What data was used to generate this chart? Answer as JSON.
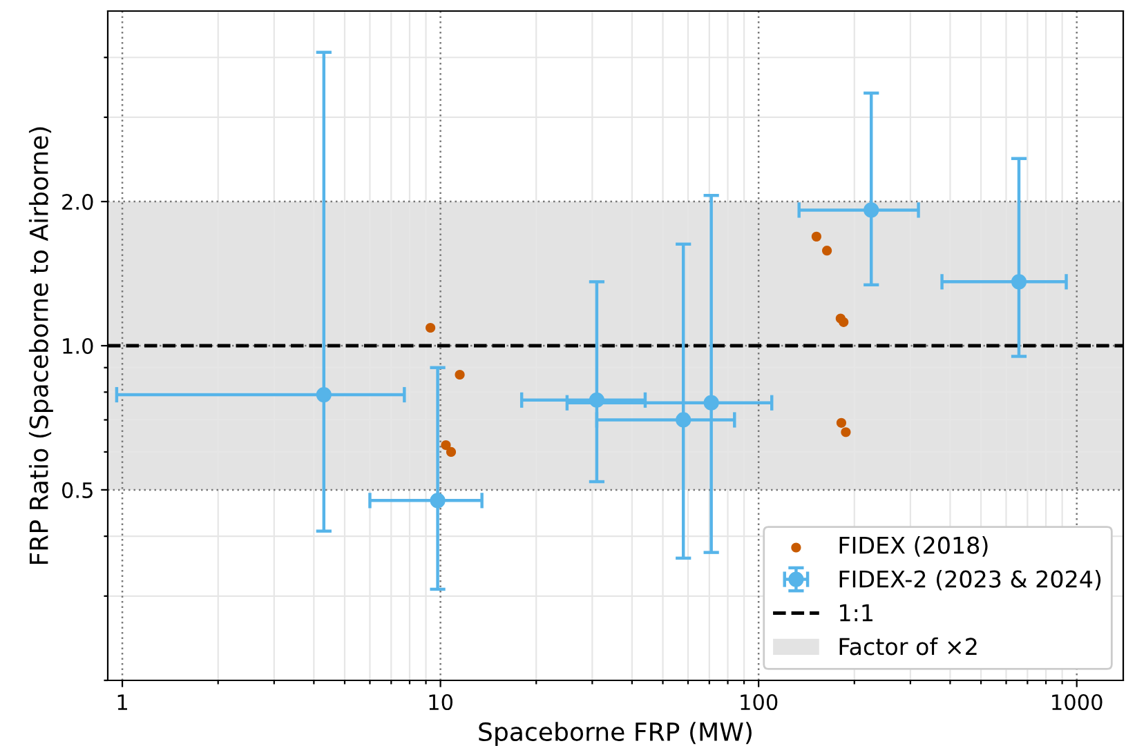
{
  "chart_data": {
    "type": "scatter",
    "xlabel": "Spaceborne FRP (MW)",
    "ylabel": "FRP Ratio (Spaceborne to Airborne)",
    "log": "xy",
    "grid": true,
    "legend": "bottom right",
    "marker": "circle",
    "xlim": [
      0.9,
      1400
    ],
    "ylim": [
      0.2,
      5
    ],
    "xticks": [
      {
        "value": 1,
        "label": "1"
      },
      {
        "value": 10,
        "label": "10"
      },
      {
        "value": 100,
        "label": "100"
      },
      {
        "value": 1000,
        "label": "1000"
      },
      {
        "value": 2,
        "label": null
      },
      {
        "value": 3,
        "label": null
      },
      {
        "value": 4,
        "label": null
      },
      {
        "value": 5,
        "label": null
      },
      {
        "value": 6,
        "label": null
      },
      {
        "value": 7,
        "label": null
      },
      {
        "value": 8,
        "label": null
      },
      {
        "value": 9,
        "label": null
      },
      {
        "value": 20,
        "label": null
      },
      {
        "value": 30,
        "label": null
      },
      {
        "value": 40,
        "label": null
      },
      {
        "value": 50,
        "label": null
      },
      {
        "value": 60,
        "label": null
      },
      {
        "value": 70,
        "label": null
      },
      {
        "value": 80,
        "label": null
      },
      {
        "value": 90,
        "label": null
      },
      {
        "value": 200,
        "label": null
      },
      {
        "value": 300,
        "label": null
      },
      {
        "value": 400,
        "label": null
      },
      {
        "value": 500,
        "label": null
      },
      {
        "value": 600,
        "label": null
      },
      {
        "value": 700,
        "label": null
      },
      {
        "value": 800,
        "label": null
      },
      {
        "value": 900,
        "label": null
      }
    ],
    "yticks": [
      {
        "value": 0.5,
        "label": "0.5"
      },
      {
        "value": 1,
        "label": "1.0"
      },
      {
        "value": 2,
        "label": "2.0"
      },
      {
        "value": 0.2,
        "label": null
      },
      {
        "value": 0.3,
        "label": null
      },
      {
        "value": 0.4,
        "label": null
      },
      {
        "value": 0.6,
        "label": null
      },
      {
        "value": 0.7,
        "label": null
      },
      {
        "value": 0.8,
        "label": null
      },
      {
        "value": 0.9,
        "label": null
      },
      {
        "value": 3,
        "label": null
      },
      {
        "value": 4,
        "label": null
      }
    ],
    "ref_lines": [
      {
        "axis": "y",
        "value": 1,
        "label": "1:1",
        "color": "#000000",
        "line_style": "dashed"
      }
    ],
    "bands": [
      {
        "axis": "y",
        "from": 0.5,
        "to": 2,
        "label": "Factor of ×2",
        "color": "#e3e3e3"
      }
    ],
    "series": [
      {
        "name": "FIDEX (2018)",
        "color": "#c85a00",
        "x": [
          9.3,
          11.5,
          10.4,
          10.8,
          152,
          164,
          181,
          185,
          182,
          188
        ],
        "values": [
          1.09,
          0.87,
          0.62,
          0.6,
          1.69,
          1.58,
          1.14,
          1.12,
          0.69,
          0.66
        ]
      },
      {
        "name": "FIDEX-2 (2023 & 2024)",
        "color": "#56b4e9",
        "x": [
          4.3,
          9.8,
          31,
          58,
          71,
          226,
          658
        ],
        "values": [
          0.79,
          0.475,
          0.77,
          0.7,
          0.76,
          1.92,
          1.36
        ],
        "errors": [
          [
            0.41,
            4.1
          ],
          [
            0.31,
            0.9
          ],
          [
            0.52,
            1.36
          ],
          [
            0.36,
            1.63
          ],
          [
            0.37,
            2.06
          ],
          [
            1.34,
            3.37
          ],
          [
            0.95,
            2.46
          ]
        ],
        "xerrors": [
          [
            0.96,
            7.7
          ],
          [
            6.0,
            13.5
          ],
          [
            18,
            44
          ],
          [
            31,
            84
          ],
          [
            25,
            110
          ],
          [
            134,
            318
          ],
          [
            377,
            927
          ]
        ]
      }
    ]
  }
}
